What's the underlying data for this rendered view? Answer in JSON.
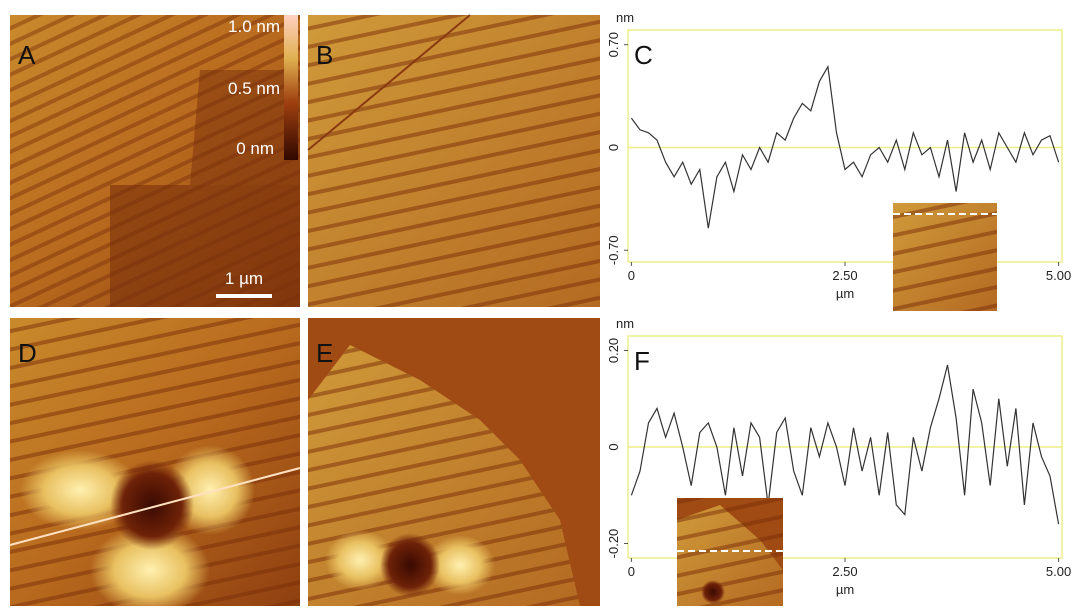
{
  "images": [
    {
      "label": "A"
    },
    {
      "label": "B"
    },
    {
      "label": "D"
    },
    {
      "label": "E"
    }
  ],
  "colorbar": {
    "labels": [
      "1.0 nm",
      "0.5 nm",
      "0 nm"
    ]
  },
  "scale_bar": "1 µm",
  "chart_data": [
    {
      "type": "line",
      "title": "C",
      "ylabel": "nm",
      "xlabel": "µm",
      "color": "#333333",
      "grid_color": "#eeee88",
      "x": [
        0,
        0.1,
        0.2,
        0.3,
        0.4,
        0.5,
        0.6,
        0.7,
        0.8,
        0.9,
        1,
        1.1,
        1.2,
        1.3,
        1.4,
        1.5,
        1.6,
        1.7,
        1.8,
        1.9,
        2,
        2.1,
        2.2,
        2.3,
        2.4,
        2.5,
        2.6,
        2.7,
        2.8,
        2.9,
        3,
        3.1,
        3.2,
        3.3,
        3.4,
        3.5,
        3.6,
        3.7,
        3.8,
        3.9,
        4,
        4.1,
        4.2,
        4.3,
        4.4,
        4.5,
        4.6,
        4.7,
        4.8,
        4.9,
        5
      ],
      "values": [
        0.2,
        0.12,
        0.1,
        0.05,
        -0.1,
        -0.2,
        -0.1,
        -0.25,
        -0.15,
        -0.55,
        -0.2,
        -0.1,
        -0.3,
        -0.05,
        -0.15,
        0.0,
        -0.1,
        0.1,
        0.05,
        0.2,
        0.3,
        0.25,
        0.45,
        0.55,
        0.1,
        -0.15,
        -0.1,
        -0.2,
        -0.05,
        0.0,
        -0.1,
        0.05,
        -0.15,
        0.1,
        -0.05,
        0.0,
        -0.2,
        0.05,
        -0.3,
        0.1,
        -0.1,
        0.05,
        -0.15,
        0.1,
        0.0,
        -0.1,
        0.1,
        -0.05,
        0.05,
        0.08,
        -0.1
      ],
      "xlim": [
        -0.04,
        5.04
      ],
      "ylim": [
        -0.78,
        0.8
      ],
      "xticks": [
        0,
        {
          "value": 2.5,
          "label": "2.50"
        },
        {
          "value": 5,
          "label": "5.00"
        }
      ],
      "yticks": [
        {
          "value": 0.7,
          "label": "0.70"
        },
        0,
        {
          "value": -0.7,
          "label": "-0.70"
        }
      ]
    },
    {
      "type": "line",
      "title": "F",
      "ylabel": "nm",
      "xlabel": "µm",
      "color": "#333333",
      "grid_color": "#eeee88",
      "x": [
        0,
        0.1,
        0.2,
        0.3,
        0.4,
        0.5,
        0.6,
        0.7,
        0.8,
        0.9,
        1,
        1.1,
        1.2,
        1.3,
        1.4,
        1.5,
        1.6,
        1.7,
        1.8,
        1.9,
        2,
        2.1,
        2.2,
        2.3,
        2.4,
        2.5,
        2.6,
        2.7,
        2.8,
        2.9,
        3,
        3.1,
        3.2,
        3.3,
        3.4,
        3.5,
        3.6,
        3.7,
        3.8,
        3.9,
        4,
        4.1,
        4.2,
        4.3,
        4.4,
        4.5,
        4.6,
        4.7,
        4.8,
        4.9,
        5
      ],
      "values": [
        -0.1,
        -0.05,
        0.05,
        0.08,
        0.02,
        0.07,
        0.0,
        -0.08,
        0.03,
        0.05,
        0.0,
        -0.1,
        0.04,
        -0.06,
        0.05,
        0.02,
        -0.12,
        0.03,
        0.06,
        -0.05,
        -0.1,
        0.04,
        -0.02,
        0.05,
        0.0,
        -0.08,
        0.04,
        -0.05,
        0.02,
        -0.1,
        0.03,
        -0.12,
        -0.14,
        0.02,
        -0.05,
        0.04,
        0.1,
        0.17,
        0.06,
        -0.1,
        0.12,
        0.05,
        -0.08,
        0.1,
        -0.04,
        0.08,
        -0.12,
        0.05,
        -0.02,
        -0.06,
        -0.16
      ],
      "xlim": [
        -0.04,
        5.04
      ],
      "ylim": [
        -0.23,
        0.23
      ],
      "xticks": [
        0,
        {
          "value": 2.5,
          "label": "2.50"
        },
        {
          "value": 5,
          "label": "5.00"
        }
      ],
      "yticks": [
        {
          "value": 0.2,
          "label": "0.20"
        },
        0,
        {
          "value": -0.2,
          "label": "-0.20"
        }
      ]
    }
  ]
}
